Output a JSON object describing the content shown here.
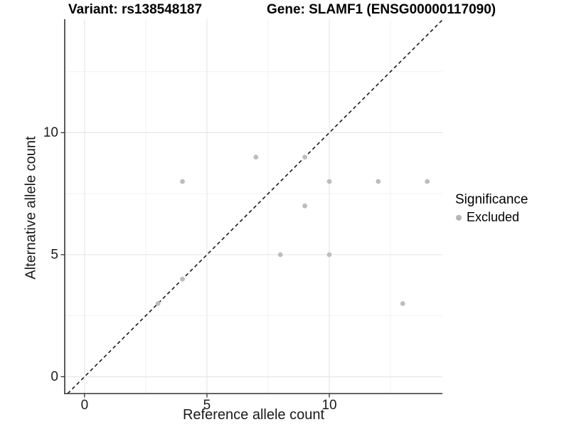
{
  "header": {
    "variant_title": "Variant: rs138548187",
    "gene_title": "Gene: SLAMF1 (ENSG00000117090)"
  },
  "chart_data": {
    "type": "scatter",
    "xlabel": "Reference allele count",
    "ylabel": "Alternative allele count",
    "xlim": [
      -0.81,
      14.62
    ],
    "ylim": [
      -0.69,
      14.65
    ],
    "x_tick_values": [
      0,
      5,
      10
    ],
    "x_tick_labels": [
      "0",
      "5",
      "10"
    ],
    "y_tick_values": [
      0,
      5,
      10
    ],
    "y_tick_labels": [
      "0",
      "5",
      "10"
    ],
    "x_minor_gridlines": [
      2.5,
      7.5,
      12.5
    ],
    "y_minor_gridlines": [
      2.5,
      7.5,
      12.5
    ],
    "grid": true,
    "identity_line": {
      "slope": 1,
      "intercept": 0,
      "style": "dashed"
    },
    "series": [
      {
        "name": "Excluded",
        "color": "#bdbdbd",
        "points": [
          [
            3,
            3
          ],
          [
            4,
            4
          ],
          [
            9,
            9
          ],
          [
            4,
            8
          ],
          [
            7,
            9
          ],
          [
            8,
            5
          ],
          [
            9,
            7
          ],
          [
            10,
            5
          ],
          [
            10,
            8
          ],
          [
            12,
            8
          ],
          [
            14,
            8
          ],
          [
            13,
            3
          ]
        ]
      }
    ],
    "legend": {
      "title": "Significance",
      "position": "right",
      "entries": [
        {
          "label": "Excluded",
          "color": "#b5b5b5"
        }
      ]
    },
    "colors": {
      "point": "#bdbdbd",
      "grid_major": "#e3e3e3",
      "grid_minor": "#f1f1f1",
      "axis_line": "#333333",
      "identity_line": "#1a1a1a",
      "tick_text": "#1a1a1a"
    }
  }
}
